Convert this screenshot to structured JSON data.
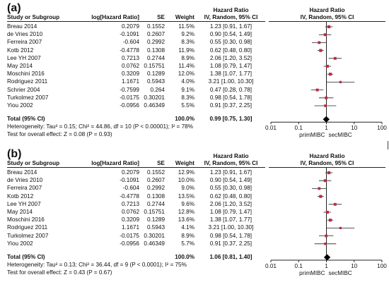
{
  "chart_data": [
    {
      "type": "forest",
      "panel_label": "(a)",
      "headers": {
        "study": "Study or Subgroup",
        "loghr": "log[Hazard Ratio]",
        "se": "SE",
        "weight": "Weight",
        "hr_title": "Hazard Ratio",
        "hr_sub": "IV, Random, 95% CI",
        "plot_title": "Hazard Ratio",
        "plot_sub": "IV, Random, 95% CI"
      },
      "studies": [
        {
          "name": "Breau 2014",
          "loghr": "0.2079",
          "se": "0.1552",
          "weight": "11.5%",
          "ci_text": "1.23 [0.91, 1.67]",
          "hr": 1.23,
          "lo": 0.91,
          "hi": 1.67,
          "w": 11.5
        },
        {
          "name": "de Vries 2010",
          "loghr": "-0.1091",
          "se": "0.2607",
          "weight": "9.2%",
          "ci_text": "0.90 [0.54, 1.49]",
          "hr": 0.9,
          "lo": 0.54,
          "hi": 1.49,
          "w": 9.2
        },
        {
          "name": "Ferreira 2007",
          "loghr": "-0.604",
          "se": "0.2992",
          "weight": "8.3%",
          "ci_text": "0.55 [0.30, 0.98]",
          "hr": 0.55,
          "lo": 0.3,
          "hi": 0.98,
          "w": 8.3
        },
        {
          "name": "Kotb 2012",
          "loghr": "-0.4778",
          "se": "0.1308",
          "weight": "11.9%",
          "ci_text": "0.62 [0.48, 0.80]",
          "hr": 0.62,
          "lo": 0.48,
          "hi": 0.8,
          "w": 11.9
        },
        {
          "name": "Lee YH 2007",
          "loghr": "0.7213",
          "se": "0.2744",
          "weight": "8.9%",
          "ci_text": "2.06 [1.20, 3.52]",
          "hr": 2.06,
          "lo": 1.2,
          "hi": 3.52,
          "w": 8.9
        },
        {
          "name": "May 2014",
          "loghr": "0.0762",
          "se": "0.15751",
          "weight": "11.4%",
          "ci_text": "1.08 [0.79, 1.47]",
          "hr": 1.08,
          "lo": 0.79,
          "hi": 1.47,
          "w": 11.4
        },
        {
          "name": "Moschini 2016",
          "loghr": "0.3209",
          "se": "0.1289",
          "weight": "12.0%",
          "ci_text": "1.38 [1.07, 1.77]",
          "hr": 1.38,
          "lo": 1.07,
          "hi": 1.77,
          "w": 12.0
        },
        {
          "name": "Rodriguez 2011",
          "loghr": "1.1671",
          "se": "0.5943",
          "weight": "4.0%",
          "ci_text": "3.21 [1.00, 10.30]",
          "hr": 3.21,
          "lo": 1.0,
          "hi": 10.3,
          "w": 4.0
        },
        {
          "name": "Schrier 2004",
          "loghr": "-0.7599",
          "se": "0.264",
          "weight": "9.1%",
          "ci_text": "0.47 [0.28, 0.78]",
          "hr": 0.47,
          "lo": 0.28,
          "hi": 0.78,
          "w": 9.1
        },
        {
          "name": "Turkolmez 2007",
          "loghr": "-0.0175",
          "se": "0.30201",
          "weight": "8.3%",
          "ci_text": "0.98 [0.54, 1.78]",
          "hr": 0.98,
          "lo": 0.54,
          "hi": 1.78,
          "w": 8.3
        },
        {
          "name": "Yiou 2002",
          "loghr": "-0.0956",
          "se": "0.46349",
          "weight": "5.5%",
          "ci_text": "0.91 [0.37, 2.25]",
          "hr": 0.91,
          "lo": 0.37,
          "hi": 2.25,
          "w": 5.5
        }
      ],
      "total": {
        "label": "Total (95% CI)",
        "weight": "100.0%",
        "ci_text": "0.99 [0.75, 1.30]",
        "hr": 0.99,
        "lo": 0.75,
        "hi": 1.3
      },
      "heterogeneity": "Heterogeneity: Tau² = 0.15; Chi² = 44.86, df = 10 (P < 0.00001); I² = 78%",
      "overall_effect": "Test for overall effect: Z = 0.08 (P = 0.93)",
      "x_axis": {
        "scale": "log",
        "ticks": [
          0.01,
          0.1,
          1,
          10,
          100
        ],
        "tick_labels": [
          "0.01",
          "0.1",
          "1",
          "10",
          "100"
        ],
        "xlim": [
          0.01,
          100
        ]
      },
      "favours_left": "primMIBC",
      "favours_right": "secMIBC"
    },
    {
      "type": "forest",
      "panel_label": "(b)",
      "headers": {
        "study": "Study or Subgroup",
        "loghr": "log[Hazard Ratio]",
        "se": "SE",
        "weight": "Weight",
        "hr_title": "Hazard Ratio",
        "hr_sub": "IV, Random, 95% CI",
        "plot_title": "Hazard Ratio",
        "plot_sub": "IV, Random, 95% CI"
      },
      "studies": [
        {
          "name": "Breau 2014",
          "loghr": "0.2079",
          "se": "0.1552",
          "weight": "12.9%",
          "ci_text": "1.23 [0.91, 1.67]",
          "hr": 1.23,
          "lo": 0.91,
          "hi": 1.67,
          "w": 12.9
        },
        {
          "name": "de Vries 2010",
          "loghr": "-0.1091",
          "se": "0.2607",
          "weight": "10.0%",
          "ci_text": "0.90 [0.54, 1.49]",
          "hr": 0.9,
          "lo": 0.54,
          "hi": 1.49,
          "w": 10.0
        },
        {
          "name": "Ferreira 2007",
          "loghr": "-0.604",
          "se": "0.2992",
          "weight": "9.0%",
          "ci_text": "0.55 [0.30, 0.98]",
          "hr": 0.55,
          "lo": 0.3,
          "hi": 0.98,
          "w": 9.0
        },
        {
          "name": "Kotb 2012",
          "loghr": "-0.4778",
          "se": "0.1308",
          "weight": "13.5%",
          "ci_text": "0.62 [0.48, 0.80]",
          "hr": 0.62,
          "lo": 0.48,
          "hi": 0.8,
          "w": 13.5
        },
        {
          "name": "Lee YH 2007",
          "loghr": "0.7213",
          "se": "0.2744",
          "weight": "9.6%",
          "ci_text": "2.06 [1.20, 3.52]",
          "hr": 2.06,
          "lo": 1.2,
          "hi": 3.52,
          "w": 9.6
        },
        {
          "name": "May 2014",
          "loghr": "0.0762",
          "se": "0.15751",
          "weight": "12.8%",
          "ci_text": "1.08 [0.79, 1.47]",
          "hr": 1.08,
          "lo": 0.79,
          "hi": 1.47,
          "w": 12.8
        },
        {
          "name": "Moschini 2016",
          "loghr": "0.3209",
          "se": "0.1289",
          "weight": "13.6%",
          "ci_text": "1.38 [1.07, 1.77]",
          "hr": 1.38,
          "lo": 1.07,
          "hi": 1.77,
          "w": 13.6
        },
        {
          "name": "Rodriguez 2011",
          "loghr": "1.1671",
          "se": "0.5943",
          "weight": "4.1%",
          "ci_text": "3.21 [1.00, 10.30]",
          "hr": 3.21,
          "lo": 1.0,
          "hi": 10.3,
          "w": 4.1
        },
        {
          "name": "Turkolmez 2007",
          "loghr": "-0.0175",
          "se": "0.30201",
          "weight": "8.9%",
          "ci_text": "0.98 [0.54, 1.78]",
          "hr": 0.98,
          "lo": 0.54,
          "hi": 1.78,
          "w": 8.9
        },
        {
          "name": "Yiou 2002",
          "loghr": "-0.0956",
          "se": "0.46349",
          "weight": "5.7%",
          "ci_text": "0.91 [0.37, 2.25]",
          "hr": 0.91,
          "lo": 0.37,
          "hi": 2.25,
          "w": 5.7
        }
      ],
      "total": {
        "label": "Total (95% CI)",
        "weight": "100.0%",
        "ci_text": "1.06 [0.81, 1.40]",
        "hr": 1.06,
        "lo": 0.81,
        "hi": 1.4
      },
      "heterogeneity": "Heterogeneity: Tau² = 0.13; Chi² = 36.44, df = 9 (P < 0.0001); I² = 75%",
      "overall_effect": "Test for overall effect: Z = 0.43 (P = 0.67)",
      "x_axis": {
        "scale": "log",
        "ticks": [
          0.01,
          0.1,
          1,
          10,
          100
        ],
        "tick_labels": [
          "0.01",
          "0.1",
          "1",
          "10",
          "100"
        ],
        "xlim": [
          0.01,
          100
        ]
      },
      "favours_left": "primMIBC",
      "favours_right": "secMIBC"
    }
  ],
  "colors": {
    "marker": "#c0283a",
    "line": "#222222",
    "diamond": "#000000"
  }
}
